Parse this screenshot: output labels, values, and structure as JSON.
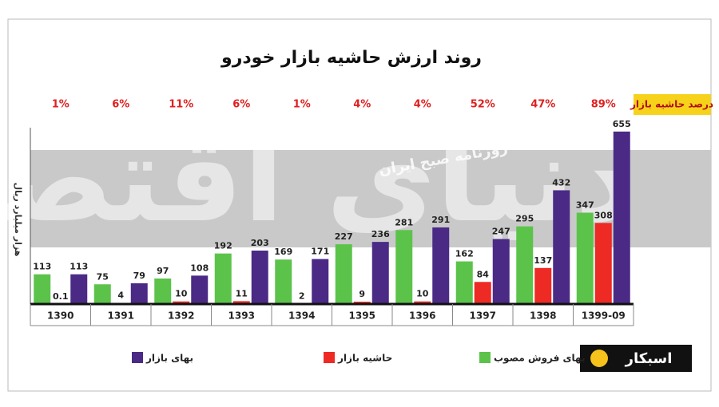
{
  "chart_data": {
    "type": "bar",
    "title": "روند ارزش حاشیه بازار خودرو",
    "y_label": "هزار میلیارد ریال",
    "watermarks": [
      "دنیای اقتصاد",
      "روزنامه صبح ایران"
    ],
    "brand": "اسبکار",
    "categories": [
      "1390",
      "1391",
      "1392",
      "1393",
      "1394",
      "1395",
      "1396",
      "1397",
      "1398",
      "1399-09"
    ],
    "series": [
      {
        "name": "بهای فروش مصوب",
        "color": "#5cc34a",
        "values": [
          113,
          75,
          97,
          192,
          169,
          227,
          281,
          162,
          295,
          347
        ]
      },
      {
        "name": "حاشیه بازار",
        "color": "#ee2a24",
        "values": [
          0.1,
          4,
          10,
          11,
          2,
          9,
          10,
          84,
          137,
          308
        ]
      },
      {
        "name": "بهای بازار",
        "color": "#4b2a86",
        "values": [
          113,
          79,
          108,
          203,
          171,
          236,
          291,
          247,
          432,
          655
        ]
      }
    ],
    "margin_percent": {
      "name": "درصد حاشیه بازار",
      "values": [
        1,
        6,
        11,
        6,
        1,
        4,
        4,
        52,
        47,
        89
      ],
      "value_labels": [
        "1%",
        "6%",
        "11%",
        "6%",
        "1%",
        "4%",
        "4%",
        "52%",
        "47%",
        "89%"
      ]
    },
    "ylim": [
      0,
      700
    ]
  }
}
